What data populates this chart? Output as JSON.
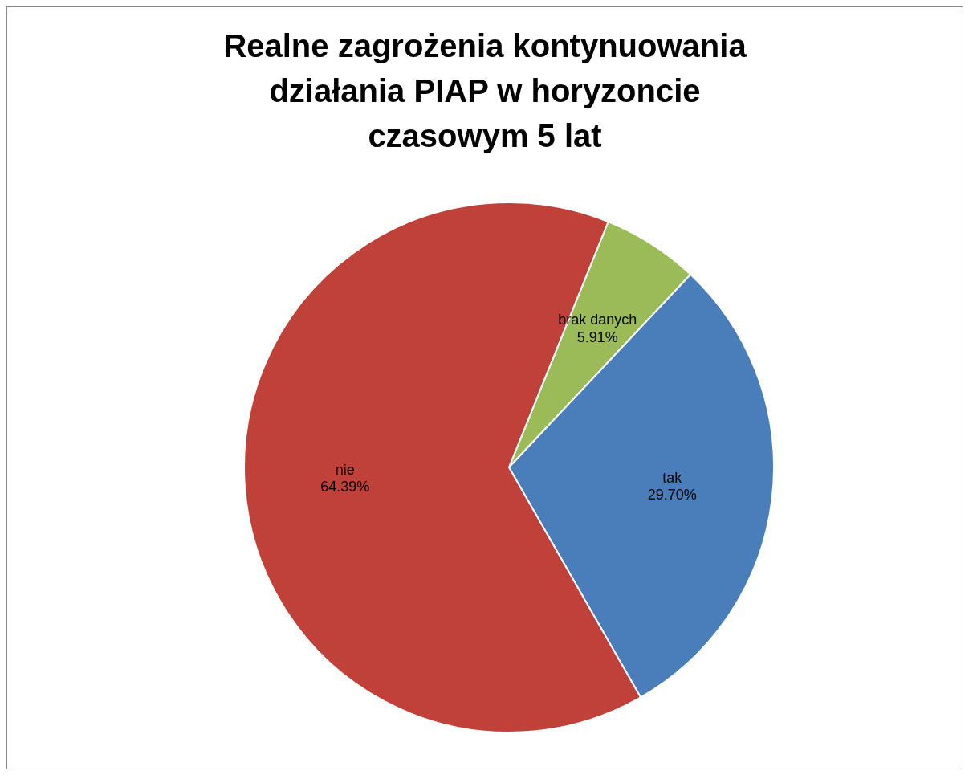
{
  "chart_data": {
    "type": "pie",
    "title": "Realne zagrożenia kontynuowania działania PIAP w horyzoncie czasowym 5 lat",
    "categories": [
      "brak danych",
      "tak",
      "nie"
    ],
    "values": [
      5.91,
      29.7,
      64.39
    ],
    "colors": [
      "#9bbb59",
      "#4a7ebb",
      "#c0403a"
    ],
    "value_labels": [
      "5.91%",
      "29.70%",
      "64.39%"
    ],
    "legend": false
  }
}
